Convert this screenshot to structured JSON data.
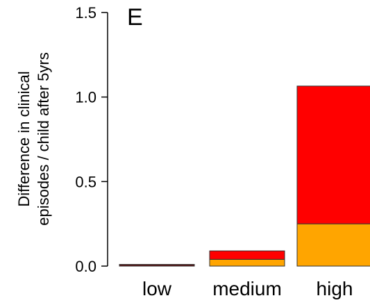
{
  "chart_data": {
    "type": "bar",
    "panel_label": "E",
    "ylabel_lines": [
      "Difference in clinical",
      "episodes / child after 5yrs"
    ],
    "ylim": [
      0,
      1.5
    ],
    "yticks": [
      {
        "value": 0.0,
        "label": "0.0"
      },
      {
        "value": 0.5,
        "label": "0.5"
      },
      {
        "value": 1.0,
        "label": "1.0"
      },
      {
        "value": 1.5,
        "label": "1.5"
      }
    ],
    "categories": [
      "low",
      "medium",
      "high"
    ],
    "stacked": true,
    "series": [
      {
        "color": "#FFA500",
        "values": [
          0.0,
          0.04,
          0.25
        ]
      },
      {
        "color": "#FF0000",
        "values": [
          0.0,
          0.05,
          0.815
        ]
      },
      {
        "color": "#5a0f0f",
        "values": [
          0.01,
          0.0,
          0.0
        ]
      }
    ],
    "grid": false,
    "legend": "none"
  }
}
